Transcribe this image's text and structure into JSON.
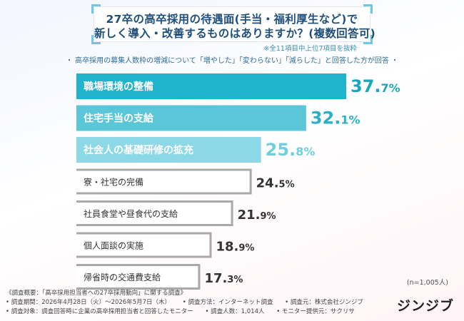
{
  "title": {
    "line1": "27卒の高卒採用の待遇面(手当・福利厚生など)で",
    "line2": "新しく導入・改善するものはありますか？(複数回答可)"
  },
  "note": "※全11項目中上位7項目を抜粋",
  "subtitle": "・ 高卒採用の募集人数枠の増減について「増やした」「変わらない」「減らした」と回答した方が回答 ・",
  "sample_size": "(n=1,005人)",
  "footer": {
    "survey": "《調査概要：「高卒採用担当者への27卒採用動向」に関する調査》",
    "period": "• 調査期間：2026年4月28日（火）～2026年5月7日（木）",
    "method": "• 調査方法：インターネット調査",
    "agency": "• 調査元：株式会社ジンジブ",
    "target": "• 調査対象：調査回答時に企業の高卒採用担当者と回答したモニター",
    "count": "• 調査人数：1,014人",
    "provider": "• モニター提供元：サクリサ"
  },
  "brand": "ジンジブ",
  "colors": {
    "top1": "#1fb3cc",
    "top2": "#5cc6d9",
    "top3": "#8dd8e6",
    "rest": "#a9a9a9",
    "top1_value": "#1aa6be",
    "top2_value": "#2ab0c8",
    "top3_value": "#6fcfe0",
    "rest_value": "#333333"
  },
  "chart_data": {
    "type": "bar",
    "orientation": "horizontal",
    "categories": [
      "職場環境の整備",
      "住宅手当の支給",
      "社会人の基礎研修の拡充",
      "寮・社宅の完備",
      "社員食堂や昼食代の支給",
      "個人面談の実施",
      "帰省時の交通費支給"
    ],
    "values": [
      37.7,
      32.1,
      25.8,
      24.5,
      21.9,
      18.9,
      17.3
    ],
    "value_labels": [
      "37.7",
      "32.1",
      "25.8",
      "24.5",
      "21.9",
      "18.9",
      "17.3"
    ],
    "unit": "%",
    "xlim": [
      0,
      37.7
    ]
  }
}
